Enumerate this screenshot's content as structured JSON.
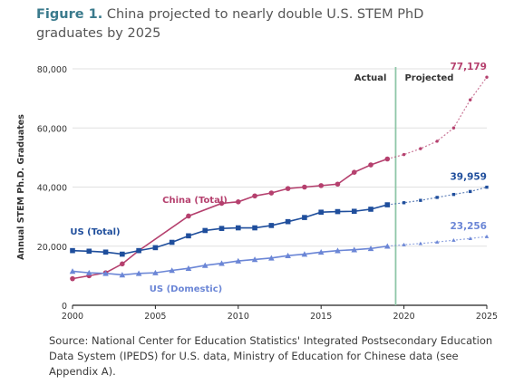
{
  "figure": {
    "label": "Figure 1.",
    "title": "China projected to nearly double U.S. STEM PhD graduates by 2025"
  },
  "source_note": "Source: National Center for Education Statistics' Integrated Postsecondary Education Data System (IPEDS) for U.S. data, Ministry of Education for Chinese data (see Appendix A).",
  "chart_data": {
    "type": "line",
    "title": "China projected to nearly double U.S. STEM PhD graduates by 2025",
    "xlabel": "",
    "ylabel": "Annual STEM Ph.D. Graduates",
    "xlim": [
      2000,
      2025
    ],
    "ylim": [
      0,
      80000
    ],
    "x_ticks": [
      "2000",
      "2005",
      "2010",
      "2015",
      "2020",
      "2025"
    ],
    "y_ticks": [
      "0",
      "20,000",
      "40,000",
      "60,000",
      "80,000"
    ],
    "grid": true,
    "divider_year": 2019.5,
    "region_labels": {
      "actual": "Actual",
      "projected": "Projected"
    },
    "colors": {
      "china": "#b5406e",
      "us_total": "#1f4e9c",
      "us_domestic": "#6b86d6",
      "divider": "#8fc7a8",
      "grid": "#e0e0e0"
    },
    "series": [
      {
        "name": "China (Total)",
        "key": "china",
        "actual": [
          [
            2000,
            9000
          ],
          [
            2001,
            10000
          ],
          [
            2002,
            11000
          ],
          [
            2003,
            14000
          ],
          [
            2004,
            18500
          ],
          [
            2007,
            30200
          ],
          [
            2009,
            34500
          ],
          [
            2010,
            35000
          ],
          [
            2011,
            37000
          ],
          [
            2012,
            38000
          ],
          [
            2013,
            39500
          ],
          [
            2014,
            40000
          ],
          [
            2015,
            40500
          ],
          [
            2016,
            41000
          ],
          [
            2017,
            45000
          ],
          [
            2018,
            47500
          ],
          [
            2019,
            49500
          ]
        ],
        "projected": [
          [
            2020,
            51000
          ],
          [
            2021,
            53000
          ],
          [
            2022,
            55500
          ],
          [
            2023,
            60000
          ],
          [
            2024,
            69500
          ],
          [
            2025,
            77179
          ]
        ],
        "end_label": "77,179"
      },
      {
        "name": "US (Total)",
        "key": "us_total",
        "actual": [
          [
            2000,
            18500
          ],
          [
            2001,
            18300
          ],
          [
            2002,
            18000
          ],
          [
            2003,
            17300
          ],
          [
            2004,
            18500
          ],
          [
            2005,
            19500
          ],
          [
            2006,
            21300
          ],
          [
            2007,
            23500
          ],
          [
            2008,
            25300
          ],
          [
            2009,
            26000
          ],
          [
            2010,
            26200
          ],
          [
            2011,
            26200
          ],
          [
            2012,
            27000
          ],
          [
            2013,
            28300
          ],
          [
            2014,
            29700
          ],
          [
            2015,
            31500
          ],
          [
            2016,
            31700
          ],
          [
            2017,
            31800
          ],
          [
            2018,
            32500
          ],
          [
            2019,
            34000
          ]
        ],
        "projected": [
          [
            2020,
            34700
          ],
          [
            2021,
            35500
          ],
          [
            2022,
            36500
          ],
          [
            2023,
            37500
          ],
          [
            2024,
            38500
          ],
          [
            2025,
            39959
          ]
        ],
        "end_label": "39,959"
      },
      {
        "name": "US (Domestic)",
        "key": "us_domestic",
        "actual": [
          [
            2000,
            11500
          ],
          [
            2001,
            11000
          ],
          [
            2002,
            10800
          ],
          [
            2003,
            10300
          ],
          [
            2004,
            10800
          ],
          [
            2005,
            11000
          ],
          [
            2006,
            11800
          ],
          [
            2007,
            12500
          ],
          [
            2008,
            13500
          ],
          [
            2009,
            14200
          ],
          [
            2010,
            15000
          ],
          [
            2011,
            15500
          ],
          [
            2012,
            16000
          ],
          [
            2013,
            16800
          ],
          [
            2014,
            17300
          ],
          [
            2015,
            18000
          ],
          [
            2016,
            18500
          ],
          [
            2017,
            18800
          ],
          [
            2018,
            19200
          ],
          [
            2019,
            20000
          ]
        ],
        "projected": [
          [
            2020,
            20500
          ],
          [
            2021,
            20900
          ],
          [
            2022,
            21400
          ],
          [
            2023,
            22000
          ],
          [
            2024,
            22600
          ],
          [
            2025,
            23256
          ]
        ],
        "end_label": "23,256"
      }
    ]
  }
}
